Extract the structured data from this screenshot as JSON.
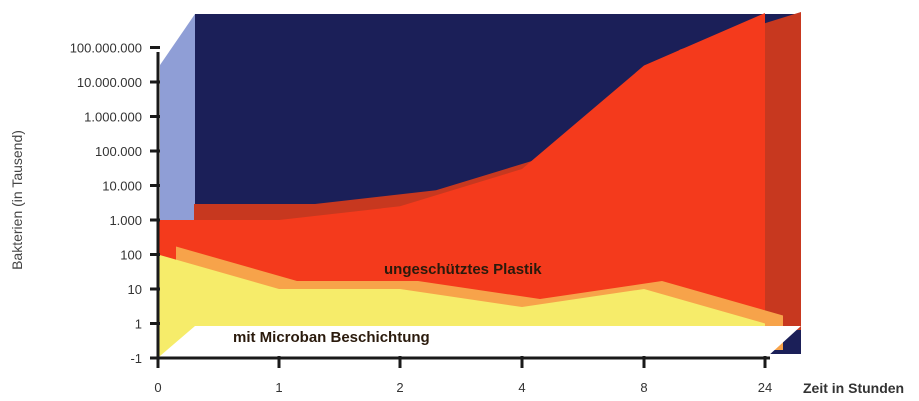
{
  "chart_data": {
    "type": "area",
    "xlabel": "Zeit in Stunden",
    "ylabel": "Bakterien (in Tausend)",
    "x": [
      "0",
      "1",
      "2",
      "4",
      "8",
      "24"
    ],
    "y_ticks": [
      "-1",
      "1",
      "10",
      "100",
      "1.000",
      "10.000",
      "100.000",
      "1.000.000",
      "10.000.000",
      "100.000.000"
    ],
    "series": [
      {
        "name": "ungeschütztes Plastik",
        "values": [
          1000,
          1000,
          2500,
          30000,
          30000000,
          1000000000
        ],
        "color": "#f43a1c"
      },
      {
        "name": "mit Microban Beschichtung",
        "values": [
          100,
          10,
          10,
          3,
          10,
          1
        ],
        "color": "#f6ec6a"
      }
    ],
    "colors": {
      "background": "#1b1f58",
      "left_wall": "#8f9ed6",
      "shadow": "#f7a34a",
      "floor": "#ffffff"
    },
    "grid": false,
    "legend": "none"
  }
}
